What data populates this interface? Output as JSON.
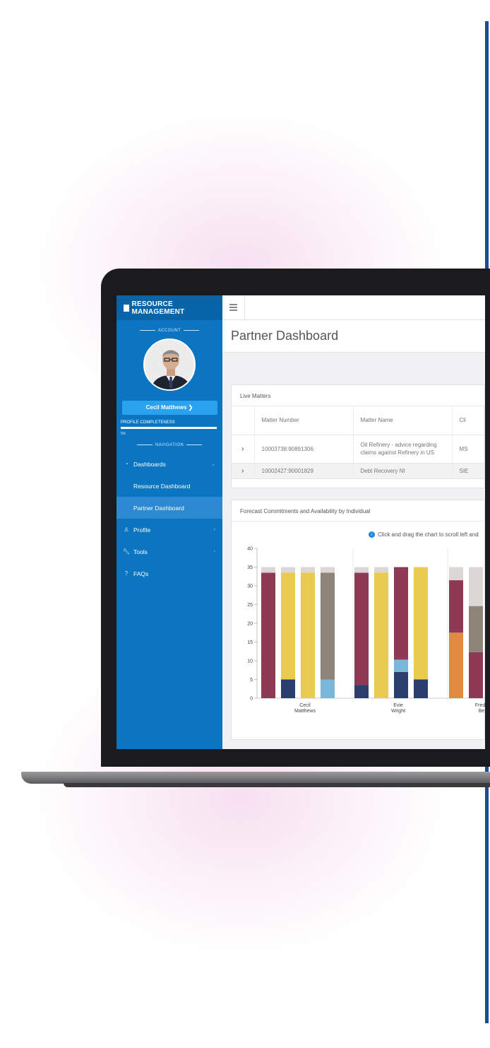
{
  "app": {
    "brand": "RESOURCE MANAGEMENT"
  },
  "sidebar": {
    "account_label": "ACCOUNT",
    "user_name": "Cecil Matthews",
    "profile_completeness_label": "PROFILE COMPLETENESS",
    "profile_completeness_value": "0%",
    "navigation_label": "NAVIGATION",
    "items": [
      {
        "label": "Dashboards",
        "icon": "dashboard-icon"
      },
      {
        "label": "Resource Dashboard"
      },
      {
        "label": "Partner Dashboard"
      },
      {
        "label": "Profile",
        "icon": "user-icon"
      },
      {
        "label": "Tools",
        "icon": "wrench-icon"
      },
      {
        "label": "FAQs",
        "icon": "question-circle-icon"
      }
    ]
  },
  "page": {
    "title": "Partner Dashboard"
  },
  "live_matters": {
    "title": "Live Matters",
    "columns": [
      "Matter Number",
      "Matter Name",
      "Cli"
    ],
    "rows": [
      {
        "number": "10003738:90891306",
        "name": "Oil Refinery - advice regarding claims against Refinery in US",
        "client": "MS"
      },
      {
        "number": "10002427:90001829",
        "name": "Debt Recovery NI",
        "client": "SIE"
      }
    ]
  },
  "forecast": {
    "title": "Forecast Commitments and Availability by Individual",
    "hint": "Click and drag the chart to scroll left and"
  },
  "colors": {
    "maroon": "#8f3a55",
    "yellow": "#e9cc4f",
    "navy": "#2b3f6e",
    "lightblue": "#79b7db",
    "grey": "#8d8477",
    "orange": "#df8a3c",
    "cap": "#dcd7d5"
  },
  "chart_data": {
    "type": "bar",
    "stacked": true,
    "ylim": [
      0,
      40
    ],
    "yticks": [
      0,
      5,
      10,
      15,
      20,
      25,
      30,
      35,
      40
    ],
    "categories": [
      "Cecil\nMatthews",
      "Evie\nWright",
      "Fred\nBe"
    ],
    "xtick_lines": [
      [
        "Cecil",
        "Matthews"
      ],
      [
        "Evie",
        "Wright"
      ],
      [
        "Frede",
        "Be"
      ]
    ],
    "bars": [
      {
        "group": 0,
        "segments": [
          {
            "color": "maroon",
            "value": 33.5
          },
          {
            "color": "cap",
            "value": 1.5
          }
        ]
      },
      {
        "group": 0,
        "segments": [
          {
            "color": "navy",
            "value": 5
          },
          {
            "color": "yellow",
            "value": 28.5
          },
          {
            "color": "cap",
            "value": 1.5
          }
        ]
      },
      {
        "group": 0,
        "segments": [
          {
            "color": "yellow",
            "value": 33.5
          },
          {
            "color": "cap",
            "value": 1.5
          }
        ]
      },
      {
        "group": 0,
        "segments": [
          {
            "color": "lightblue",
            "value": 5
          },
          {
            "color": "grey",
            "value": 28.5
          },
          {
            "color": "cap",
            "value": 1.5
          }
        ]
      },
      {
        "group": 1,
        "segments": [
          {
            "color": "navy",
            "value": 3.5
          },
          {
            "color": "maroon",
            "value": 30
          },
          {
            "color": "cap",
            "value": 1.5
          }
        ]
      },
      {
        "group": 1,
        "segments": [
          {
            "color": "yellow",
            "value": 33.5
          },
          {
            "color": "cap",
            "value": 1.5
          }
        ]
      },
      {
        "group": 1,
        "segments": [
          {
            "color": "navy",
            "value": 7
          },
          {
            "color": "lightblue",
            "value": 3.3
          },
          {
            "color": "maroon",
            "value": 24.7
          }
        ]
      },
      {
        "group": 1,
        "segments": [
          {
            "color": "navy",
            "value": 5
          },
          {
            "color": "yellow",
            "value": 30
          }
        ]
      },
      {
        "group": 2,
        "segments": [
          {
            "color": "orange",
            "value": 17.5
          },
          {
            "color": "maroon",
            "value": 14
          },
          {
            "color": "cap",
            "value": 3.5
          }
        ]
      },
      {
        "group": 2,
        "segments": [
          {
            "color": "maroon",
            "value": 12.3
          },
          {
            "color": "grey",
            "value": 12.3
          },
          {
            "color": "cap",
            "value": 10.4
          }
        ]
      }
    ]
  }
}
